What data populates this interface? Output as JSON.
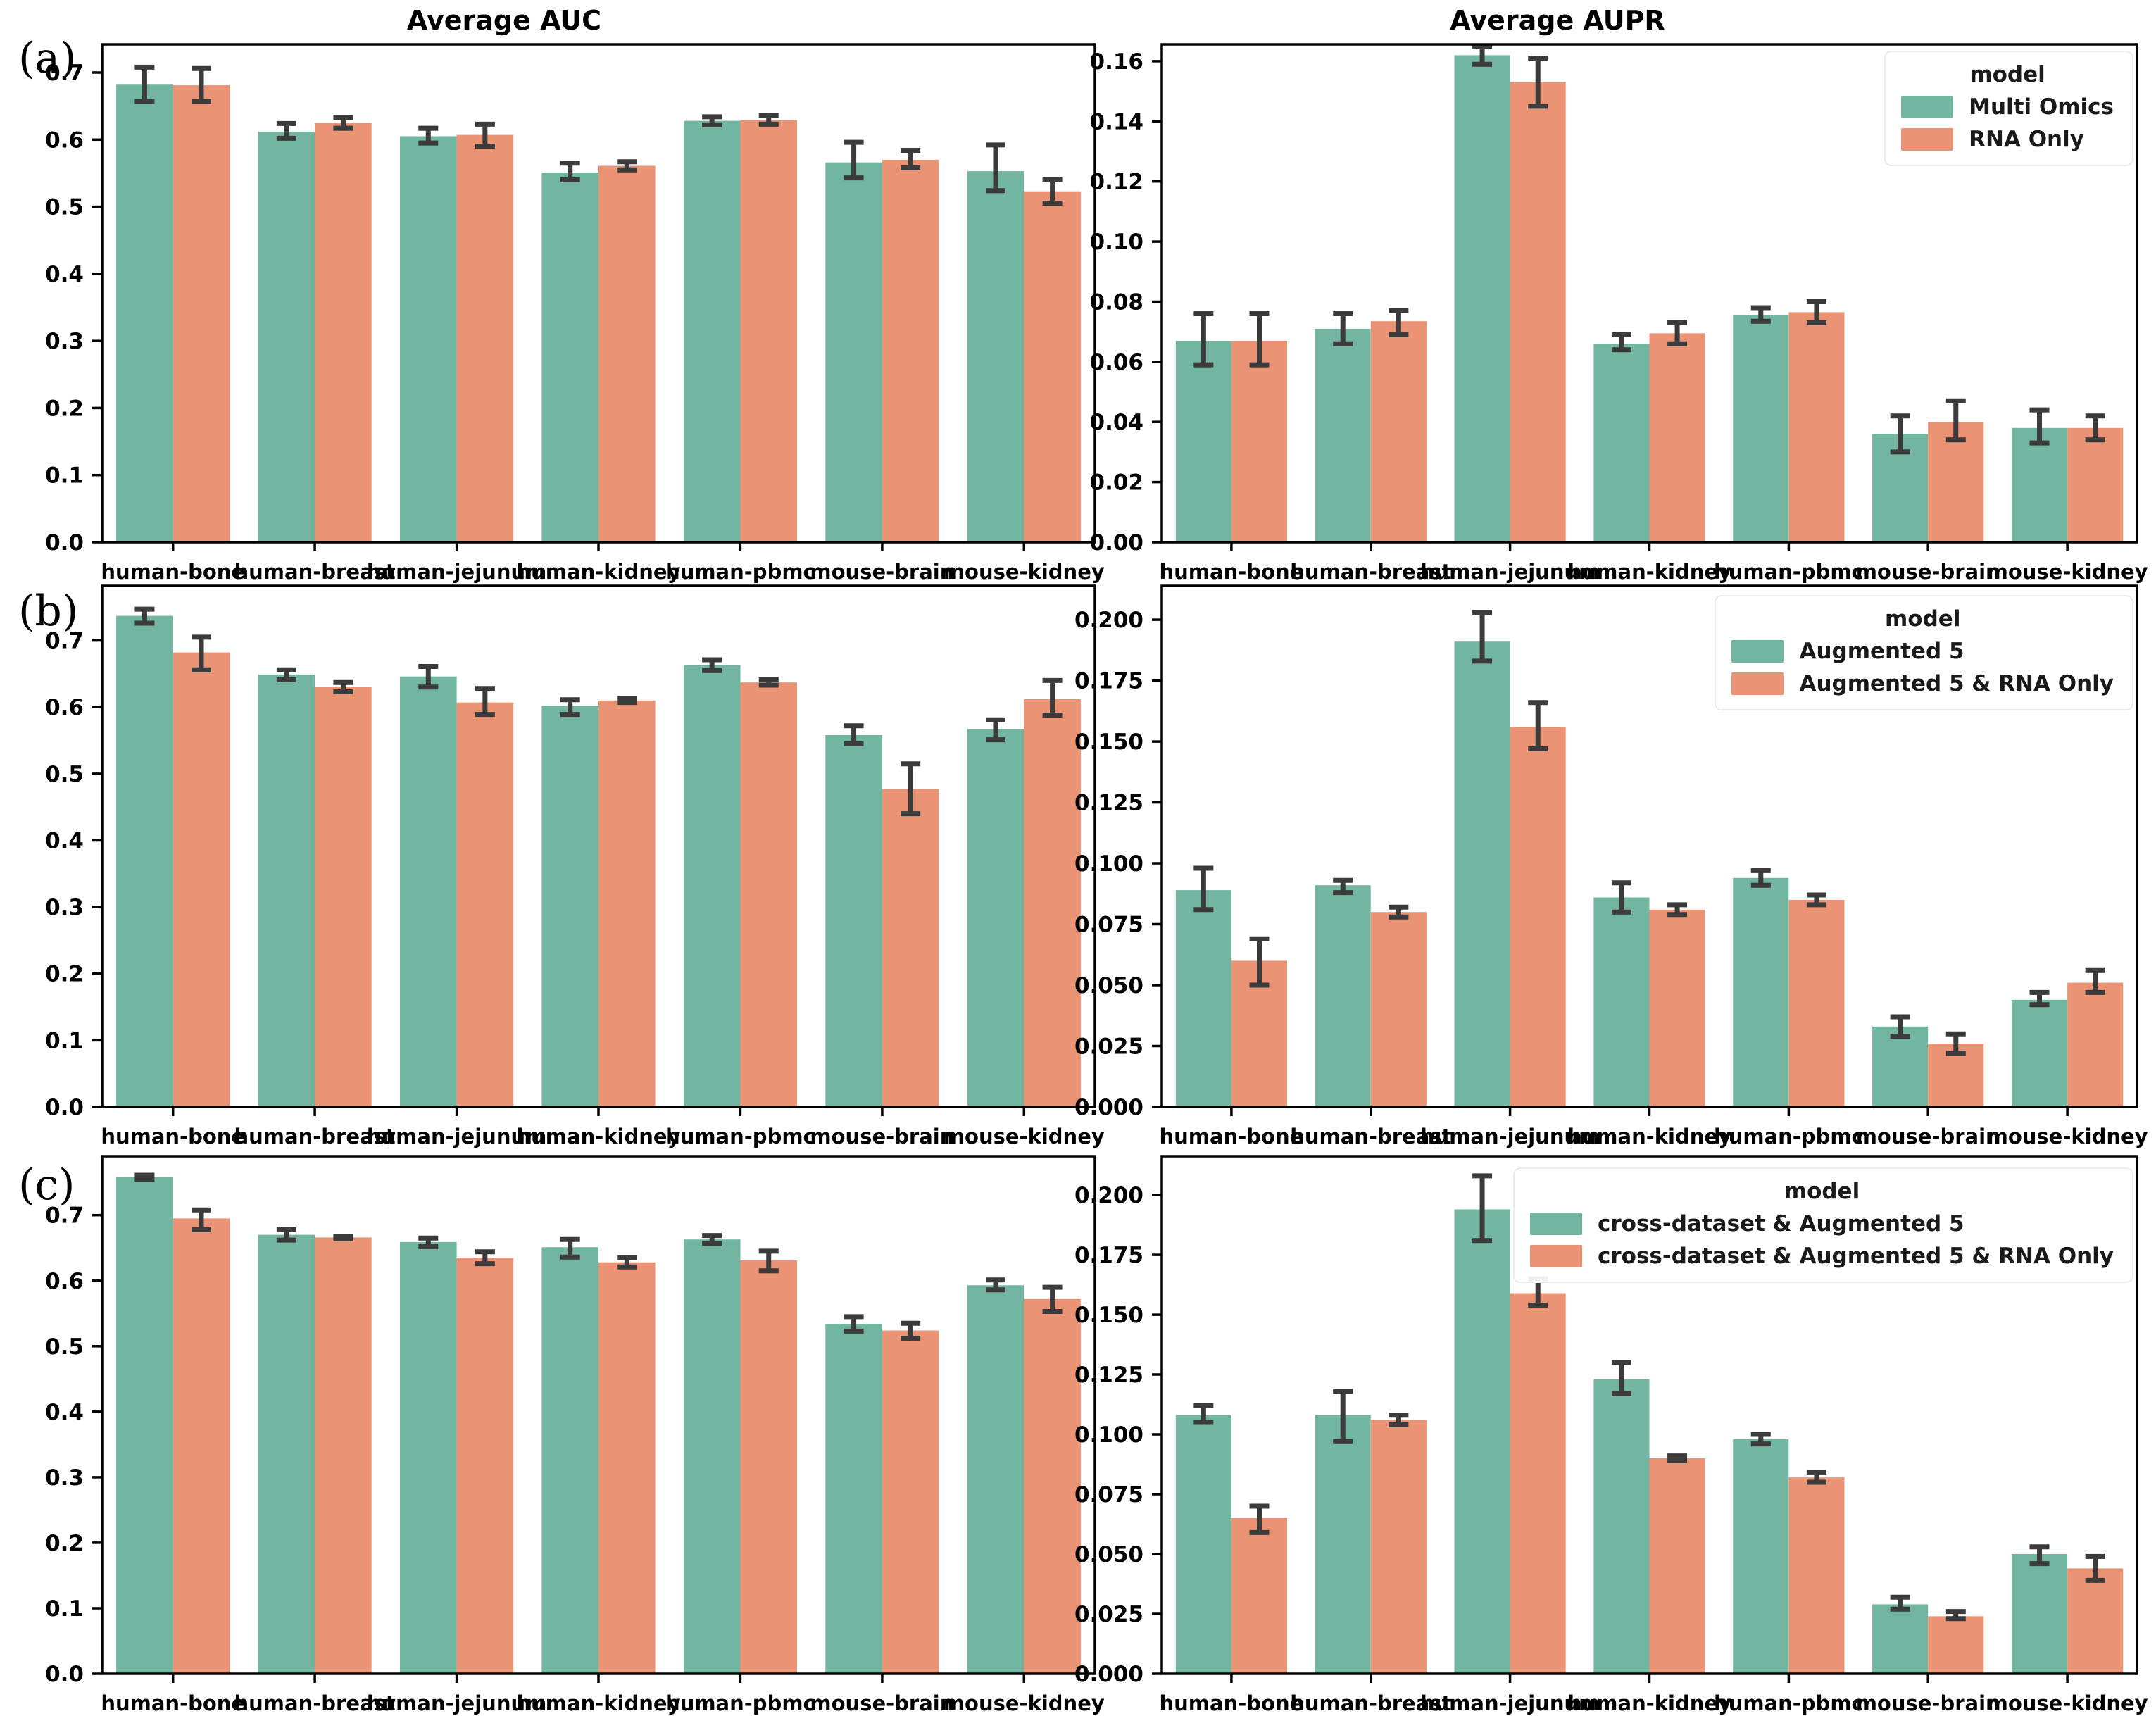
{
  "colors": {
    "series_green": "#72b5a1",
    "series_orange": "#eb9475",
    "error_bar": "#3b3b3b",
    "axis": "#000000",
    "background": "#ffffff"
  },
  "chart_data": {
    "type": "bar",
    "grid": false,
    "legend_position": "upper-right of right charts",
    "categories": [
      "human-bone",
      "human-breast",
      "human-jejunum",
      "human-kidney",
      "human-pbmc",
      "mouse-brain",
      "mouse-kidney"
    ],
    "rows": [
      {
        "row_label": "(a)",
        "auc": {
          "title": "Average AUC",
          "ylabel_ticks_decimals": 1,
          "ytick_step": 0.1,
          "ytick_max": 0.7,
          "ylim": [
            0,
            0.742
          ],
          "series": [
            {
              "name": "Multi Omics",
              "values": [
                0.682,
                0.612,
                0.605,
                0.551,
                0.628,
                0.566,
                0.553
              ],
              "err_lo": [
                0.657,
                0.602,
                0.595,
                0.54,
                0.622,
                0.543,
                0.524
              ],
              "err_hi": [
                0.708,
                0.624,
                0.617,
                0.565,
                0.634,
                0.596,
                0.592
              ]
            },
            {
              "name": "RNA Only",
              "values": [
                0.681,
                0.625,
                0.607,
                0.561,
                0.629,
                0.57,
                0.523
              ],
              "err_lo": [
                0.657,
                0.617,
                0.59,
                0.555,
                0.623,
                0.558,
                0.505
              ],
              "err_hi": [
                0.706,
                0.633,
                0.623,
                0.567,
                0.636,
                0.584,
                0.541
              ]
            }
          ]
        },
        "aupr": {
          "title": "Average AUPR",
          "ylabel_ticks_decimals": 2,
          "ytick_step": 0.02,
          "ytick_max": 0.16,
          "ylim": [
            0,
            0.1656
          ],
          "legend": {
            "title": "model",
            "entries": [
              "Multi Omics",
              "RNA Only"
            ]
          },
          "series": [
            {
              "name": "Multi Omics",
              "values": [
                0.067,
                0.071,
                0.162,
                0.066,
                0.0755,
                0.036,
                0.038
              ],
              "err_lo": [
                0.059,
                0.066,
                0.159,
                0.064,
                0.0735,
                0.03,
                0.033
              ],
              "err_hi": [
                0.076,
                0.076,
                0.165,
                0.069,
                0.078,
                0.042,
                0.044
              ]
            },
            {
              "name": "RNA Only",
              "values": [
                0.067,
                0.0735,
                0.153,
                0.0695,
                0.0765,
                0.04,
                0.038
              ],
              "err_lo": [
                0.059,
                0.069,
                0.145,
                0.066,
                0.073,
                0.034,
                0.034
              ],
              "err_hi": [
                0.076,
                0.077,
                0.161,
                0.073,
                0.08,
                0.047,
                0.042
              ]
            }
          ]
        }
      },
      {
        "row_label": "(b)",
        "auc": {
          "title": "",
          "ylabel_ticks_decimals": 1,
          "ytick_step": 0.1,
          "ytick_max": 0.7,
          "ylim": [
            0,
            0.782
          ],
          "series": [
            {
              "name": "Augmented 5",
              "values": [
                0.737,
                0.649,
                0.646,
                0.602,
                0.663,
                0.558,
                0.567
              ],
              "err_lo": [
                0.726,
                0.641,
                0.63,
                0.589,
                0.655,
                0.545,
                0.551
              ],
              "err_hi": [
                0.747,
                0.656,
                0.661,
                0.611,
                0.671,
                0.572,
                0.581
              ]
            },
            {
              "name": "Augmented 5 & RNA Only",
              "values": [
                0.682,
                0.63,
                0.607,
                0.61,
                0.637,
                0.477,
                0.612
              ],
              "err_lo": [
                0.656,
                0.623,
                0.589,
                0.607,
                0.633,
                0.44,
                0.588
              ],
              "err_hi": [
                0.705,
                0.637,
                0.628,
                0.613,
                0.641,
                0.515,
                0.64
              ]
            }
          ]
        },
        "aupr": {
          "title": "",
          "ylabel_ticks_decimals": 3,
          "ytick_step": 0.025,
          "ytick_max": 0.2,
          "ylim": [
            0,
            0.2139
          ],
          "legend": {
            "title": "model",
            "entries": [
              "Augmented 5",
              "Augmented 5 & RNA Only"
            ]
          },
          "series": [
            {
              "name": "Augmented 5",
              "values": [
                0.089,
                0.091,
                0.191,
                0.086,
                0.094,
                0.033,
                0.044
              ],
              "err_lo": [
                0.081,
                0.088,
                0.183,
                0.08,
                0.091,
                0.029,
                0.042
              ],
              "err_hi": [
                0.098,
                0.093,
                0.203,
                0.092,
                0.097,
                0.037,
                0.047
              ]
            },
            {
              "name": "Augmented 5 & RNA Only",
              "values": [
                0.06,
                0.08,
                0.156,
                0.081,
                0.085,
                0.026,
                0.051
              ],
              "err_lo": [
                0.05,
                0.078,
                0.147,
                0.079,
                0.083,
                0.022,
                0.047
              ],
              "err_hi": [
                0.069,
                0.082,
                0.166,
                0.083,
                0.087,
                0.03,
                0.056
              ]
            }
          ]
        }
      },
      {
        "row_label": "(c)",
        "auc": {
          "title": "",
          "ylabel_ticks_decimals": 1,
          "ytick_step": 0.1,
          "ytick_max": 0.7,
          "ylim": [
            0,
            0.79
          ],
          "series": [
            {
              "name": "cross-dataset & Augmented 5",
              "values": [
                0.758,
                0.67,
                0.659,
                0.651,
                0.663,
                0.534,
                0.593
              ],
              "err_lo": [
                0.755,
                0.662,
                0.652,
                0.636,
                0.657,
                0.523,
                0.586
              ],
              "err_hi": [
                0.761,
                0.678,
                0.665,
                0.663,
                0.669,
                0.545,
                0.601
              ]
            },
            {
              "name": "cross-dataset & Augmented 5 & RNA Only",
              "values": [
                0.695,
                0.666,
                0.635,
                0.628,
                0.631,
                0.524,
                0.572
              ],
              "err_lo": [
                0.678,
                0.664,
                0.626,
                0.621,
                0.615,
                0.512,
                0.553
              ],
              "err_hi": [
                0.708,
                0.668,
                0.644,
                0.635,
                0.645,
                0.535,
                0.59
              ]
            }
          ]
        },
        "aupr": {
          "title": "",
          "ylabel_ticks_decimals": 3,
          "ytick_step": 0.025,
          "ytick_max": 0.2,
          "ylim": [
            0,
            0.2162
          ],
          "legend": {
            "title": "model",
            "entries": [
              "cross-dataset & Augmented 5",
              "cross-dataset & Augmented 5 & RNA Only"
            ]
          },
          "series": [
            {
              "name": "cross-dataset & Augmented 5",
              "values": [
                0.108,
                0.108,
                0.194,
                0.123,
                0.098,
                0.029,
                0.05
              ],
              "err_lo": [
                0.105,
                0.097,
                0.181,
                0.117,
                0.096,
                0.027,
                0.046
              ],
              "err_hi": [
                0.112,
                0.118,
                0.208,
                0.13,
                0.1,
                0.032,
                0.053
              ]
            },
            {
              "name": "cross-dataset & Augmented 5 & RNA Only",
              "values": [
                0.065,
                0.106,
                0.159,
                0.09,
                0.082,
                0.024,
                0.044
              ],
              "err_lo": [
                0.059,
                0.104,
                0.154,
                0.089,
                0.08,
                0.023,
                0.039
              ],
              "err_hi": [
                0.07,
                0.108,
                0.165,
                0.091,
                0.084,
                0.026,
                0.049
              ]
            }
          ]
        }
      }
    ]
  }
}
